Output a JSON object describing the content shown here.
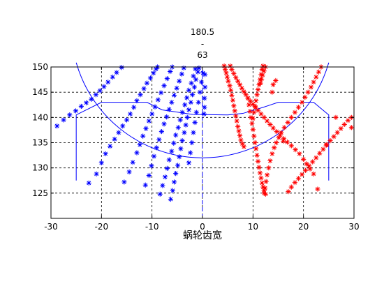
{
  "chart_data": {
    "type": "scatter",
    "title_lines": [
      "180.5",
      "-",
      "63"
    ],
    "xlabel": "蜗轮齿宽",
    "ylabel": "",
    "xlim": [
      -30,
      30
    ],
    "ylim": [
      120,
      150
    ],
    "xticks": [
      -30,
      -20,
      -10,
      0,
      10,
      20,
      30
    ],
    "yticks": [
      125,
      130,
      135,
      140,
      145,
      150
    ],
    "grid": true,
    "colors": {
      "blue": "#0000ff",
      "red": "#ff0000",
      "axis": "#000000",
      "background": "#ffffff"
    },
    "series": [
      {
        "color": "#0000ff",
        "marker": "*",
        "points": [
          [
            -28.8,
            138.3
          ],
          [
            -27.5,
            139.5
          ],
          [
            -26.3,
            140.5
          ],
          [
            -25.1,
            141.3
          ],
          [
            -24.0,
            142.2
          ],
          [
            -23.0,
            142.9
          ],
          [
            -22.0,
            143.6
          ],
          [
            -21.1,
            144.5
          ],
          [
            -20.3,
            145.3
          ],
          [
            -19.5,
            146.1
          ],
          [
            -18.7,
            147.0
          ],
          [
            -17.8,
            148.0
          ],
          [
            -17.0,
            148.9
          ],
          [
            -16.0,
            149.9
          ],
          [
            -22.5,
            127.0
          ],
          [
            -21.0,
            128.8
          ],
          [
            -20.0,
            131.0
          ],
          [
            -19.2,
            132.8
          ],
          [
            -18.3,
            134.3
          ],
          [
            -17.4,
            135.7
          ],
          [
            -16.6,
            137.0
          ],
          [
            -15.8,
            138.3
          ],
          [
            -15.0,
            139.5
          ],
          [
            -14.3,
            140.7
          ],
          [
            -13.6,
            142.0
          ],
          [
            -13.0,
            143.3
          ],
          [
            -12.3,
            144.5
          ],
          [
            -11.6,
            145.7
          ],
          [
            -11.0,
            146.8
          ],
          [
            -10.3,
            147.8
          ],
          [
            -9.7,
            148.8
          ],
          [
            -9.2,
            149.6
          ],
          [
            -8.9,
            150.0
          ],
          [
            -15.5,
            127.2
          ],
          [
            -14.5,
            129.2
          ],
          [
            -13.8,
            131.1
          ],
          [
            -13.0,
            133.0
          ],
          [
            -12.4,
            134.6
          ],
          [
            -11.8,
            136.3
          ],
          [
            -11.2,
            137.8
          ],
          [
            -10.6,
            139.3
          ],
          [
            -10.0,
            140.7
          ],
          [
            -9.4,
            142.1
          ],
          [
            -8.8,
            143.5
          ],
          [
            -8.2,
            144.9
          ],
          [
            -7.6,
            146.3
          ],
          [
            -7.0,
            147.7
          ],
          [
            -6.4,
            149.1
          ],
          [
            -6.0,
            150.0
          ],
          [
            -11.3,
            126.6
          ],
          [
            -10.6,
            128.5
          ],
          [
            -10.1,
            130.4
          ],
          [
            -9.6,
            132.3
          ],
          [
            -9.1,
            134.0
          ],
          [
            -8.6,
            135.6
          ],
          [
            -8.1,
            137.2
          ],
          [
            -7.6,
            138.7
          ],
          [
            -7.1,
            140.1
          ],
          [
            -6.6,
            141.6
          ],
          [
            -6.1,
            143.0
          ],
          [
            -5.6,
            144.4
          ],
          [
            -5.1,
            145.8
          ],
          [
            -4.6,
            147.2
          ],
          [
            -4.1,
            148.6
          ],
          [
            -3.7,
            149.8
          ],
          [
            -8.4,
            124.8
          ],
          [
            -7.9,
            126.5
          ],
          [
            -7.4,
            128.2
          ],
          [
            -7.0,
            129.9
          ],
          [
            -6.6,
            131.6
          ],
          [
            -6.1,
            133.3
          ],
          [
            -5.7,
            134.9
          ],
          [
            -5.3,
            136.5
          ],
          [
            -4.8,
            138.0
          ],
          [
            -4.4,
            139.5
          ],
          [
            -4.0,
            141.0
          ],
          [
            -3.5,
            142.5
          ],
          [
            -3.1,
            143.9
          ],
          [
            -2.7,
            145.4
          ],
          [
            -2.2,
            146.8
          ],
          [
            -1.8,
            148.2
          ],
          [
            -1.4,
            149.6
          ],
          [
            -6.3,
            123.8
          ],
          [
            -5.9,
            125.5
          ],
          [
            -5.6,
            127.2
          ],
          [
            -5.3,
            128.9
          ],
          [
            -4.9,
            130.5
          ],
          [
            -4.6,
            132.2
          ],
          [
            -4.3,
            133.8
          ],
          [
            -4.0,
            135.4
          ],
          [
            -3.6,
            137.0
          ],
          [
            -3.3,
            138.5
          ],
          [
            -3.0,
            140.0
          ],
          [
            -2.7,
            141.5
          ],
          [
            -2.3,
            143.0
          ],
          [
            -2.0,
            144.5
          ],
          [
            -1.6,
            146.0
          ],
          [
            -1.3,
            147.5
          ],
          [
            -0.9,
            149.0
          ],
          [
            -0.7,
            149.8
          ],
          [
            -2.7,
            131.0
          ],
          [
            -2.4,
            133.0
          ],
          [
            -2.1,
            135.0
          ],
          [
            -1.8,
            137.0
          ],
          [
            -1.5,
            139.0
          ],
          [
            -1.2,
            141.0
          ],
          [
            -0.8,
            143.0
          ],
          [
            -0.5,
            145.0
          ],
          [
            -0.2,
            147.0
          ],
          [
            0.1,
            148.8
          ],
          [
            0.3,
            140.7
          ],
          [
            0.4,
            142.0
          ],
          [
            0.4,
            143.8
          ],
          [
            0.5,
            146.0
          ],
          [
            0.5,
            148.5
          ]
        ]
      },
      {
        "color": "#ff0000",
        "marker": "*",
        "points": [
          [
            4.3,
            150.2
          ],
          [
            4.5,
            149.5
          ],
          [
            4.7,
            148.8
          ],
          [
            4.9,
            148.0
          ],
          [
            5.1,
            147.2
          ],
          [
            5.4,
            146.3
          ],
          [
            5.6,
            145.4
          ],
          [
            5.8,
            144.4
          ],
          [
            6.0,
            143.4
          ],
          [
            6.2,
            142.3
          ],
          [
            6.4,
            141.3
          ],
          [
            6.6,
            140.3
          ],
          [
            6.8,
            139.3
          ],
          [
            7.0,
            138.2
          ],
          [
            7.2,
            137.3
          ],
          [
            7.4,
            136.4
          ],
          [
            7.6,
            135.5
          ],
          [
            7.9,
            134.8
          ],
          [
            8.2,
            134.2
          ],
          [
            5.5,
            150.2
          ],
          [
            5.8,
            149.5
          ],
          [
            6.2,
            148.7
          ],
          [
            6.6,
            147.9
          ],
          [
            7.0,
            147.2
          ],
          [
            7.4,
            146.5
          ],
          [
            7.8,
            145.8
          ],
          [
            8.2,
            145.1
          ],
          [
            8.6,
            144.5
          ],
          [
            9.0,
            143.8
          ],
          [
            9.5,
            143.2
          ],
          [
            10.0,
            142.6
          ],
          [
            10.5,
            142.0
          ],
          [
            11.0,
            141.4
          ],
          [
            11.6,
            140.7
          ],
          [
            12.2,
            140.0
          ],
          [
            12.8,
            139.3
          ],
          [
            13.4,
            138.6
          ],
          [
            14.0,
            137.9
          ],
          [
            14.7,
            137.2
          ],
          [
            15.4,
            136.5
          ],
          [
            16.1,
            135.8
          ],
          [
            16.8,
            135.1
          ],
          [
            17.6,
            134.4
          ],
          [
            18.4,
            133.6
          ],
          [
            19.2,
            132.8
          ],
          [
            20.0,
            131.7
          ],
          [
            20.6,
            130.8
          ],
          [
            21.3,
            129.8
          ],
          [
            22.0,
            128.8
          ],
          [
            9.0,
            143.8
          ],
          [
            9.2,
            142.5
          ],
          [
            9.4,
            141.2
          ],
          [
            9.6,
            140.0
          ],
          [
            9.8,
            138.8
          ],
          [
            10.0,
            137.6
          ],
          [
            10.2,
            136.3
          ],
          [
            10.4,
            135.0
          ],
          [
            10.6,
            133.8
          ],
          [
            10.8,
            132.5
          ],
          [
            11.0,
            131.3
          ],
          [
            11.2,
            130.1
          ],
          [
            11.4,
            129.0
          ],
          [
            11.6,
            128.0
          ],
          [
            11.8,
            127.0
          ],
          [
            12.0,
            126.2
          ],
          [
            12.2,
            125.5
          ],
          [
            12.0,
            150.2
          ],
          [
            11.8,
            149.5
          ],
          [
            11.6,
            148.5
          ],
          [
            11.4,
            147.5
          ],
          [
            11.2,
            146.5
          ],
          [
            11.0,
            145.5
          ],
          [
            10.8,
            144.5
          ],
          [
            10.6,
            143.3
          ],
          [
            10.4,
            142.2
          ],
          [
            10.2,
            141.0
          ],
          [
            10.0,
            139.8
          ],
          [
            12.5,
            150.0
          ],
          [
            12.2,
            149.2
          ],
          [
            11.9,
            148.4
          ],
          [
            11.7,
            147.6
          ],
          [
            11.5,
            146.8
          ],
          [
            12.2,
            125.0
          ],
          [
            12.5,
            124.8
          ],
          [
            12.4,
            126.0
          ],
          [
            12.6,
            127.3
          ],
          [
            12.8,
            128.6
          ],
          [
            13.1,
            130.0
          ],
          [
            13.4,
            131.4
          ],
          [
            13.8,
            132.8
          ],
          [
            14.2,
            134.0
          ],
          [
            14.6,
            135.0
          ],
          [
            15.1,
            136.0
          ],
          [
            15.6,
            137.0
          ],
          [
            16.2,
            138.0
          ],
          [
            16.9,
            139.0
          ],
          [
            17.6,
            140.0
          ],
          [
            18.3,
            141.0
          ],
          [
            19.0,
            142.0
          ],
          [
            19.7,
            143.0
          ],
          [
            20.3,
            144.0
          ],
          [
            20.9,
            145.0
          ],
          [
            21.5,
            146.0
          ],
          [
            22.0,
            147.0
          ],
          [
            22.5,
            148.0
          ],
          [
            23.0,
            149.0
          ],
          [
            23.5,
            150.0
          ],
          [
            17.0,
            125.3
          ],
          [
            17.6,
            126.2
          ],
          [
            18.3,
            127.1
          ],
          [
            19.0,
            127.9
          ],
          [
            19.7,
            128.7
          ],
          [
            20.4,
            129.5
          ],
          [
            21.1,
            130.4
          ],
          [
            21.8,
            131.2
          ],
          [
            22.5,
            132.0
          ],
          [
            23.2,
            132.9
          ],
          [
            23.9,
            133.7
          ],
          [
            24.6,
            134.6
          ],
          [
            25.3,
            135.4
          ],
          [
            26.0,
            136.2
          ],
          [
            26.7,
            137.0
          ],
          [
            27.4,
            137.8
          ],
          [
            28.1,
            138.6
          ],
          [
            28.8,
            139.4
          ],
          [
            29.5,
            140.0
          ],
          [
            14.5,
            147.3
          ],
          [
            14.0,
            146.5
          ],
          [
            13.8,
            145.0
          ],
          [
            22.8,
            125.8
          ],
          [
            26.4,
            140.0
          ],
          [
            29.5,
            138.0
          ],
          [
            24.5,
            134.5
          ],
          [
            16.0,
            135.3
          ]
        ]
      }
    ],
    "outline": {
      "color": "#0000ff",
      "polyline": [
        [
          -25,
          127.5
        ],
        [
          -25,
          140.5
        ],
        [
          -20,
          143
        ],
        [
          -11,
          143
        ],
        [
          -8,
          141.5
        ],
        [
          -2,
          140.6
        ],
        [
          5,
          140.5
        ],
        [
          8,
          140.8
        ],
        [
          12,
          142.0
        ],
        [
          15,
          143
        ],
        [
          22,
          143
        ],
        [
          25,
          140.5
        ],
        [
          25,
          127.5
        ]
      ],
      "arc": {
        "center": [
          0,
          158
        ],
        "radius": 26,
        "x_range": [
          -25,
          25
        ]
      },
      "dashed_center_line": {
        "x": 0,
        "y_range": [
          120,
          150
        ]
      }
    }
  }
}
